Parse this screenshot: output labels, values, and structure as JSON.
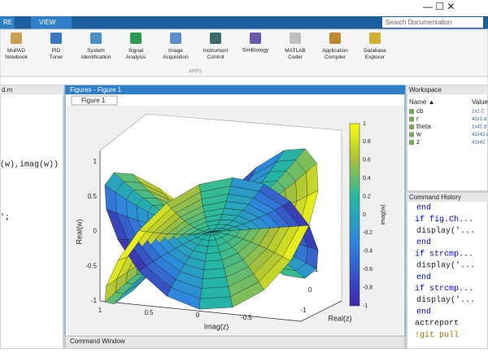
{
  "ribbon": {
    "tabs": [
      "RE",
      "VIEW"
    ],
    "search": "Search Documentation",
    "section": "APPS",
    "apps": [
      "MuPAD Notebook",
      "PID Tuner",
      "System Identification",
      "Signal Analysis",
      "Image Acquisition",
      "Instrument Control",
      "SimBiology",
      "MATLAB Coder",
      "Application Compiler",
      "Database Explorer"
    ]
  },
  "left_panel": {
    "title": "d.m",
    "code": [
      "(w),imag(w))",
      "';"
    ]
  },
  "figure": {
    "window_title": "Figures - Figure 1",
    "tab": "Figure 1",
    "z_label": "Real(w)",
    "x_label": "Imag(z)",
    "y_label": "Real(z)",
    "z_ticks": [
      1,
      0.5,
      0,
      -0.5,
      -1
    ],
    "x_ticks": [
      1,
      0.5,
      0,
      -0.5
    ],
    "y_ticks": [
      1,
      0,
      -1
    ],
    "colorbar_label": "imag(w)",
    "colorbar_ticks": [
      1,
      0.8,
      0.6,
      0.4,
      0.2,
      0,
      -0.2,
      -0.4,
      -0.6,
      -0.8,
      -1
    ]
  },
  "workspace": {
    "title": "Workspace",
    "columns": [
      "Name ▲",
      "Value"
    ],
    "variables": [
      {
        "name": "cb",
        "value": "1x1 C"
      },
      {
        "name": "r",
        "value": "41x1 d"
      },
      {
        "name": "theta",
        "value": "1x41 d"
      },
      {
        "name": "w",
        "value": "41x41 d"
      },
      {
        "name": "z",
        "value": "41x41"
      }
    ]
  },
  "command_history": {
    "title": "Command History",
    "lines": [
      "end",
      "if fig.Ch...",
      "display('...",
      "end",
      "if strcmp...",
      "display('...",
      "end",
      "if strcmp...",
      "display('...",
      "end",
      "actreport",
      "!git pull"
    ]
  },
  "command_window": {
    "title": "Command Window"
  }
}
